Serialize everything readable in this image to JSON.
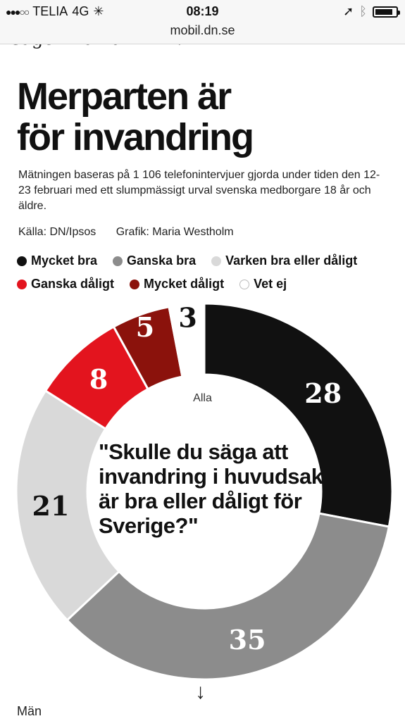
{
  "status_bar": {
    "carrier": "TELIA",
    "network": "4G",
    "time": "08:19",
    "url": "mobil.dn.se"
  },
  "article": {
    "cut_text": "säger David Ahlin.",
    "title_line1": "Merparten är",
    "title_line2": "för invandring",
    "description": "Mätningen baseras på 1 106 telefonintervjuer gjorda under tiden den 12-23 februari med ett slumpmässigt urval svenska medborgare 18 år och äldre.",
    "source": "Källa: DN/Ipsos",
    "graphic_credit": "Grafik: Maria Westholm",
    "next_group": "Män"
  },
  "chart_data": {
    "type": "pie",
    "group": "Alla",
    "question": "\"Skulle du säga att invandring i huvudsak är bra eller dåligt för Sverige?\"",
    "categories": [
      "Mycket bra",
      "Ganska bra",
      "Varken bra eller dåligt",
      "Ganska dåligt",
      "Mycket dåligt",
      "Vet ej"
    ],
    "values": [
      28,
      35,
      21,
      8,
      5,
      3
    ],
    "colors": [
      "#111111",
      "#8c8c8c",
      "#d9d9d9",
      "#e3141e",
      "#8b120c",
      "#ffffff"
    ],
    "label_colors": [
      "#ffffff",
      "#ffffff",
      "#111111",
      "#ffffff",
      "#ffffff",
      "#111111"
    ],
    "legend_placement": "top"
  }
}
